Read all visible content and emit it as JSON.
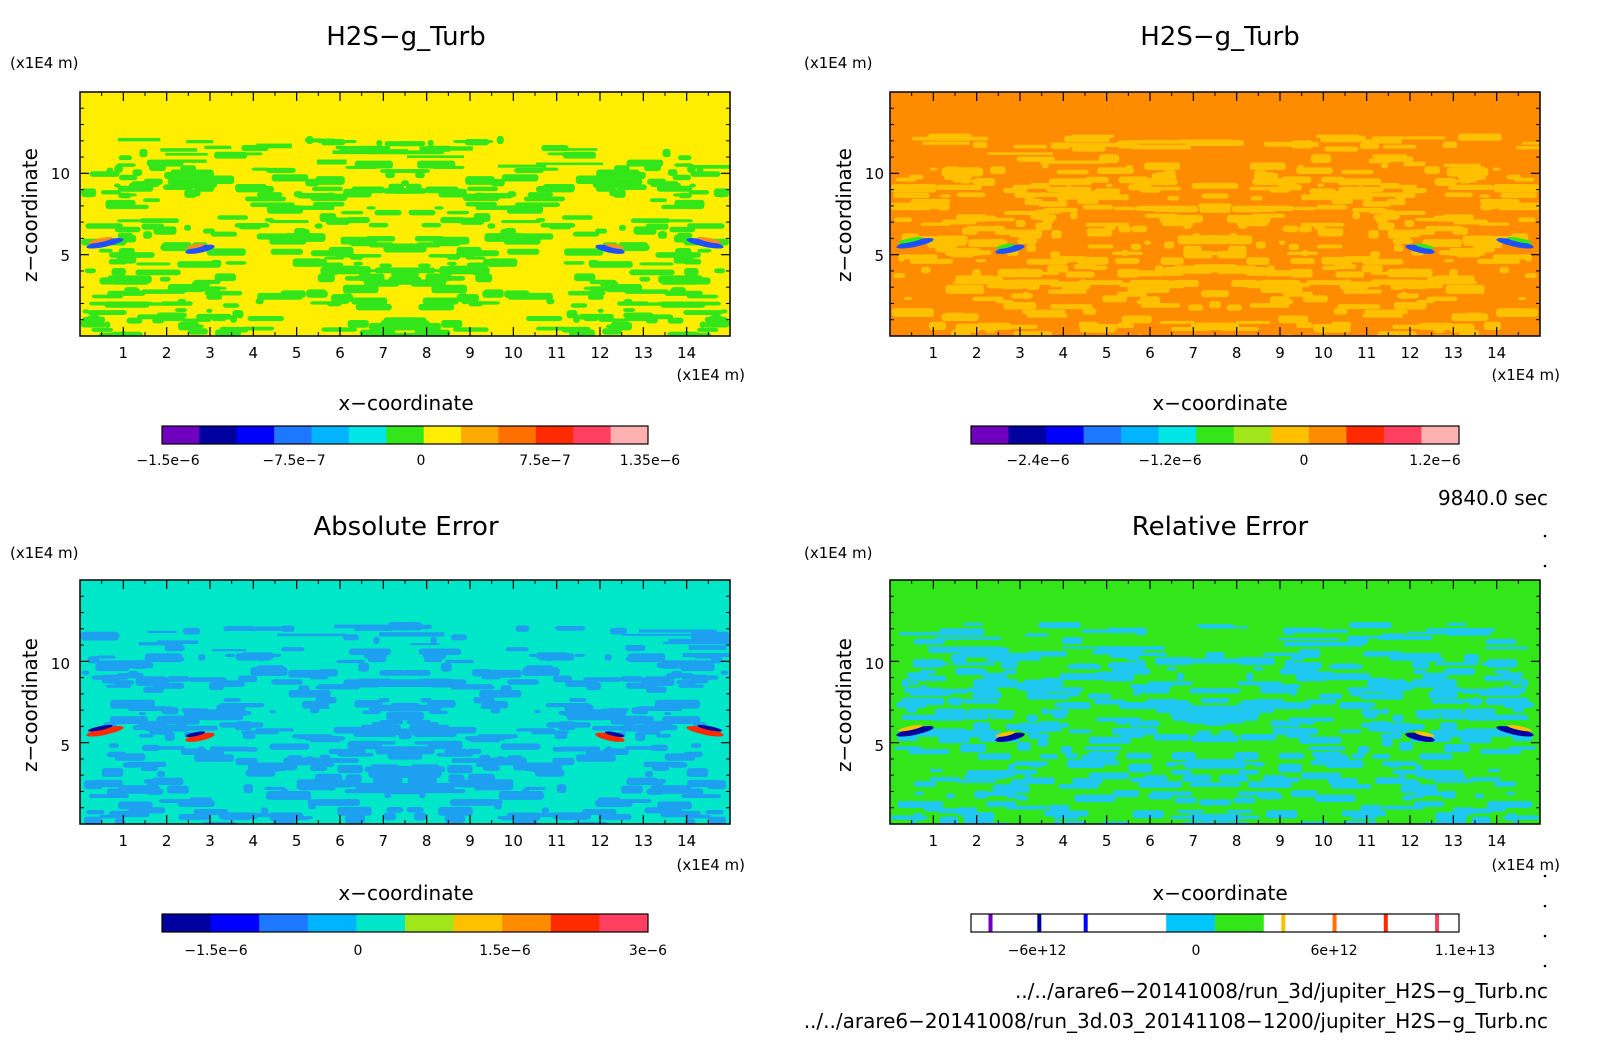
{
  "chart_data": [
    {
      "type": "heatmap",
      "title": "H2S−g_Turb",
      "xlabel": "x−coordinate",
      "ylabel": "z−coordinate",
      "xunit": "(x1E4 m)",
      "yunit": "(x1E4 m)",
      "xticks": [
        "1",
        "2",
        "3",
        "4",
        "5",
        "6",
        "7",
        "8",
        "9",
        "10",
        "11",
        "12",
        "13",
        "14"
      ],
      "yticks": [
        "5",
        "10"
      ],
      "xlim": [
        0,
        15
      ],
      "ylim": [
        0,
        15
      ],
      "background_color": "#ffee00",
      "pattern_color": "#33e61a",
      "feature_colors": [
        "#1e50ff",
        "#ff8c1e"
      ],
      "colorbar": {
        "colors": [
          "#7000c0",
          "#0000a0",
          "#0000ff",
          "#1e78ff",
          "#00b4ff",
          "#00e6e6",
          "#33e61a",
          "#ffee00",
          "#ffaa00",
          "#ff7000",
          "#ff2a00",
          "#ff4060",
          "#ffb0b0"
        ],
        "tick_labels": [
          "−1.5e−6",
          "−7.5e−7",
          "0",
          "7.5e−7",
          "1.35e−6"
        ]
      }
    },
    {
      "type": "heatmap",
      "title": "H2S−g_Turb",
      "xlabel": "x−coordinate",
      "ylabel": "z−coordinate",
      "xunit": "(x1E4 m)",
      "yunit": "(x1E4 m)",
      "xticks": [
        "1",
        "2",
        "3",
        "4",
        "5",
        "6",
        "7",
        "8",
        "9",
        "10",
        "11",
        "12",
        "13",
        "14"
      ],
      "yticks": [
        "5",
        "10"
      ],
      "xlim": [
        0,
        15
      ],
      "ylim": [
        0,
        15
      ],
      "background_color": "#ff8c00",
      "pattern_color": "#ffc000",
      "feature_colors": [
        "#1e50ff",
        "#33e61a"
      ],
      "colorbar": {
        "colors": [
          "#7000c0",
          "#0000a0",
          "#0000ff",
          "#1e78ff",
          "#00b4ff",
          "#00e6e6",
          "#33e61a",
          "#a0e61a",
          "#ffc000",
          "#ff8c00",
          "#ff2a00",
          "#ff4060",
          "#ffb0b0"
        ],
        "tick_labels": [
          "−2.4e−6",
          "−1.2e−6",
          "0",
          "1.2e−6"
        ]
      }
    },
    {
      "type": "heatmap",
      "title": "Absolute Error",
      "xlabel": "x−coordinate",
      "ylabel": "z−coordinate",
      "xunit": "(x1E4 m)",
      "yunit": "(x1E4 m)",
      "xticks": [
        "1",
        "2",
        "3",
        "4",
        "5",
        "6",
        "7",
        "8",
        "9",
        "10",
        "11",
        "12",
        "13",
        "14"
      ],
      "yticks": [
        "5",
        "10"
      ],
      "xlim": [
        0,
        15
      ],
      "ylim": [
        0,
        15
      ],
      "background_color": "#00e6c8",
      "pattern_color": "#1ea0f0",
      "feature_colors": [
        "#ff2a00",
        "#0000a0"
      ],
      "colorbar": {
        "colors": [
          "#0000a0",
          "#0000ff",
          "#1e78ff",
          "#00b4ff",
          "#00e6c8",
          "#a0e61a",
          "#ffc000",
          "#ff8c00",
          "#ff2a00",
          "#ff4060"
        ],
        "tick_labels": [
          "−1.5e−6",
          "0",
          "1.5e−6",
          "3e−6"
        ]
      }
    },
    {
      "type": "heatmap",
      "title": "Relative Error",
      "xlabel": "x−coordinate",
      "ylabel": "z−coordinate",
      "xunit": "(x1E4 m)",
      "yunit": "(x1E4 m)",
      "xticks": [
        "1",
        "2",
        "3",
        "4",
        "5",
        "6",
        "7",
        "8",
        "9",
        "10",
        "11",
        "12",
        "13",
        "14"
      ],
      "yticks": [
        "5",
        "10"
      ],
      "xlim": [
        0,
        15
      ],
      "ylim": [
        0,
        15
      ],
      "background_color": "#33e61a",
      "pattern_color": "#1ec8f0",
      "feature_colors": [
        "#0000a0",
        "#ffc000"
      ],
      "colorbar": {
        "colors": [
          "#ffffff",
          "#ffffff",
          "#ffffff",
          "#ffffff",
          "#00c8ff",
          "#33e61a",
          "#ffffff",
          "#ffffff",
          "#ffffff",
          "#ffffff"
        ],
        "markers": [
          "#7000c0",
          "#0000a0",
          "#0000ff",
          "#ffc000",
          "#ff7000",
          "#ff2a00",
          "#ff4060"
        ],
        "tick_labels": [
          "−6e+12",
          "0",
          "6e+12",
          "1.1e+13"
        ]
      }
    }
  ],
  "info": {
    "time": "9840.0 sec",
    "file1": "../../arare6−20141008/run_3d/jupiter_H2S−g_Turb.nc",
    "file2": "../../arare6−20141008/run_3d.03_20141108−1200/jupiter_H2S−g_Turb.nc"
  }
}
